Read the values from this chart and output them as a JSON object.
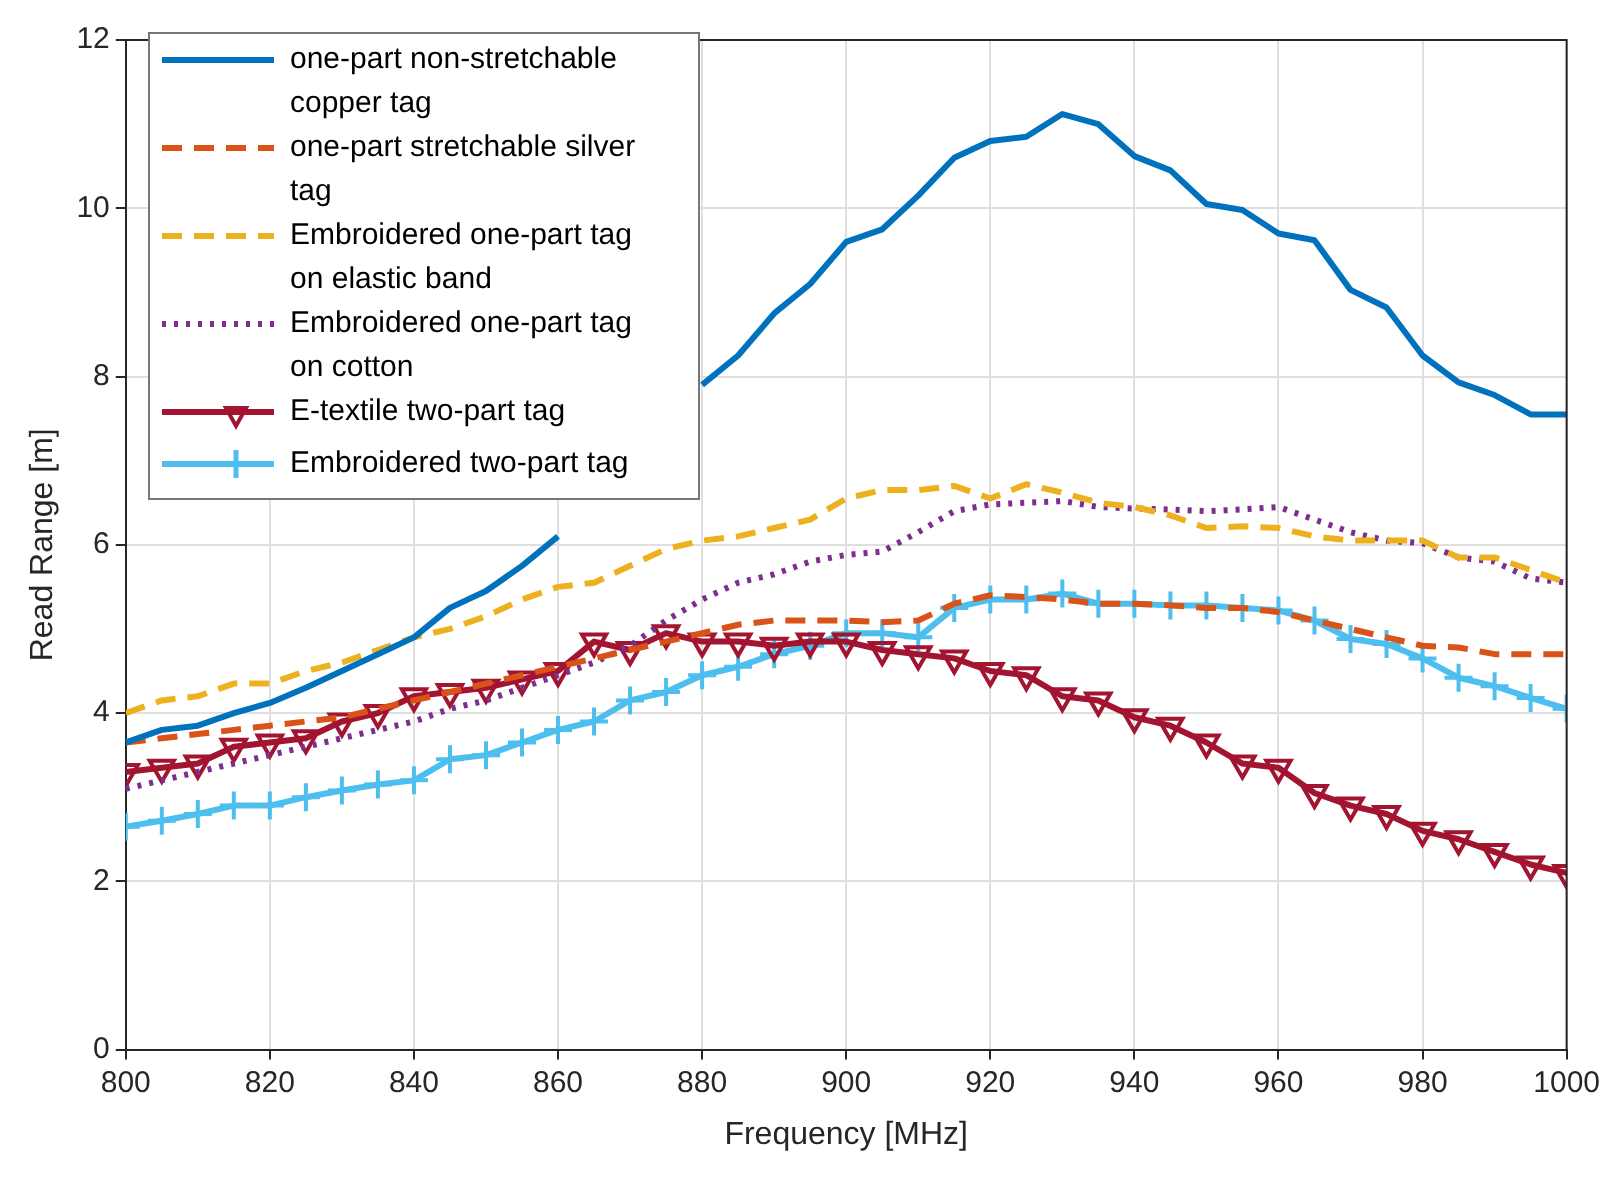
{
  "chart_data": {
    "type": "line",
    "xlabel": "Frequency [MHz]",
    "ylabel": "Read Range [m]",
    "x": [
      800,
      805,
      810,
      815,
      820,
      825,
      830,
      835,
      840,
      845,
      850,
      855,
      860,
      865,
      870,
      875,
      880,
      885,
      890,
      895,
      900,
      905,
      910,
      915,
      920,
      925,
      930,
      935,
      940,
      945,
      950,
      955,
      960,
      965,
      970,
      975,
      980,
      985,
      990,
      995,
      1000
    ],
    "xlim": [
      800,
      1000
    ],
    "xticks": [
      800,
      820,
      840,
      860,
      880,
      900,
      920,
      940,
      960,
      980,
      1000
    ],
    "ylim": [
      0,
      12
    ],
    "yticks": [
      0,
      2,
      4,
      6,
      8,
      10,
      12
    ],
    "grid": true,
    "legend": "top left",
    "series": [
      {
        "name": "one-part non-stretchable copper tag",
        "color": "#0072bd",
        "line_style": "solid",
        "marker": "none",
        "values": [
          3.65,
          3.8,
          3.85,
          4.0,
          4.12,
          4.3,
          4.5,
          4.7,
          4.9,
          5.25,
          5.45,
          5.75,
          6.1,
          null,
          null,
          null,
          7.9,
          8.25,
          8.75,
          9.1,
          9.6,
          9.75,
          10.15,
          10.6,
          10.8,
          10.85,
          11.12,
          11.0,
          10.62,
          10.45,
          10.05,
          9.98,
          9.7,
          9.62,
          9.03,
          8.82,
          8.25,
          7.93,
          7.78,
          7.55,
          7.55
        ]
      },
      {
        "name": "one-part stretchable silver tag",
        "color": "#d95319",
        "line_style": "dashed",
        "marker": "none",
        "values": [
          3.65,
          3.7,
          3.75,
          3.8,
          3.85,
          3.9,
          3.95,
          4.05,
          4.15,
          4.25,
          4.35,
          4.45,
          4.55,
          4.65,
          4.75,
          4.85,
          4.95,
          5.05,
          5.1,
          5.1,
          5.1,
          5.08,
          5.1,
          5.3,
          5.4,
          5.38,
          5.35,
          5.3,
          5.3,
          5.28,
          5.25,
          5.25,
          5.2,
          5.1,
          5.0,
          4.9,
          4.8,
          4.78,
          4.7,
          4.7,
          4.7
        ]
      },
      {
        "name": "Embroidered one-part tag on elastic band",
        "color": "#edb120",
        "line_style": "dashed",
        "marker": "none",
        "values": [
          4.0,
          4.15,
          4.2,
          4.35,
          4.35,
          4.5,
          4.6,
          4.75,
          4.9,
          5.0,
          5.15,
          5.35,
          5.5,
          5.55,
          5.75,
          5.95,
          6.05,
          6.1,
          6.2,
          6.3,
          6.55,
          6.65,
          6.65,
          6.7,
          6.55,
          6.72,
          6.62,
          6.5,
          6.45,
          6.35,
          6.2,
          6.22,
          6.2,
          6.1,
          6.05,
          6.05,
          6.05,
          5.85,
          5.85,
          5.7,
          5.55
        ]
      },
      {
        "name": "Embroidered one-part tag on cotton",
        "color": "#7e2f8e",
        "line_style": "dotted",
        "marker": "none",
        "values": [
          3.1,
          3.2,
          3.3,
          3.4,
          3.5,
          3.6,
          3.7,
          3.8,
          3.9,
          4.05,
          4.15,
          4.3,
          4.45,
          4.6,
          4.8,
          5.1,
          5.35,
          5.55,
          5.65,
          5.8,
          5.88,
          5.92,
          6.15,
          6.4,
          6.48,
          6.5,
          6.52,
          6.45,
          6.43,
          6.42,
          6.4,
          6.42,
          6.45,
          6.3,
          6.15,
          6.05,
          6.02,
          5.85,
          5.8,
          5.6,
          5.55
        ]
      },
      {
        "name": "E-textile two-part tag",
        "color": "#a2142f",
        "line_style": "solid",
        "marker": "triangle",
        "values": [
          3.3,
          3.35,
          3.4,
          3.6,
          3.65,
          3.7,
          3.9,
          4.0,
          4.2,
          4.25,
          4.3,
          4.4,
          4.5,
          4.85,
          4.75,
          4.95,
          4.85,
          4.85,
          4.8,
          4.85,
          4.85,
          4.75,
          4.7,
          4.65,
          4.5,
          4.45,
          4.2,
          4.15,
          3.95,
          3.85,
          3.65,
          3.4,
          3.35,
          3.05,
          2.9,
          2.8,
          2.6,
          2.5,
          2.35,
          2.2,
          2.1
        ]
      },
      {
        "name": "Embroidered two-part tag",
        "color": "#4dbeee",
        "line_style": "solid",
        "marker": "cross",
        "values": [
          2.65,
          2.72,
          2.8,
          2.9,
          2.9,
          3.0,
          3.08,
          3.15,
          3.2,
          3.45,
          3.5,
          3.65,
          3.8,
          3.9,
          4.15,
          4.25,
          4.45,
          4.55,
          4.7,
          4.8,
          4.95,
          4.95,
          4.9,
          5.25,
          5.35,
          5.35,
          5.42,
          5.3,
          5.3,
          5.28,
          5.28,
          5.25,
          5.22,
          5.1,
          4.88,
          4.82,
          4.65,
          4.42,
          4.32,
          4.18,
          4.05
        ]
      }
    ]
  }
}
